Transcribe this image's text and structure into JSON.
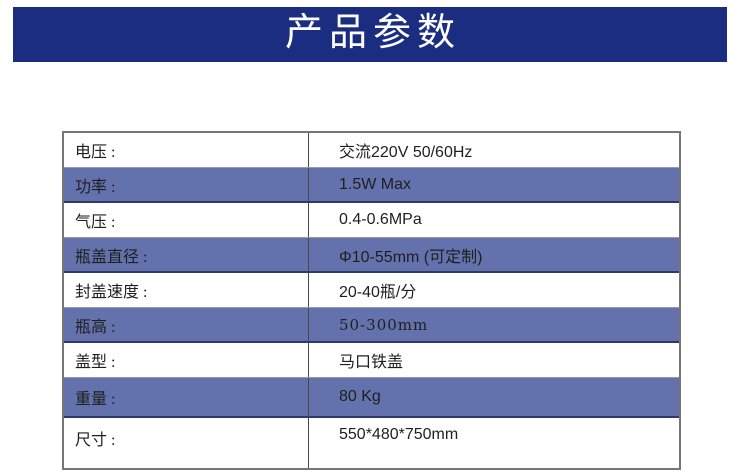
{
  "banner": {
    "title": "产品参数",
    "bg_color": "#1b2d80",
    "text_color": "#ffffff"
  },
  "table": {
    "highlight_color": "#6372ac",
    "border_color": "#767676",
    "rows": [
      {
        "label": "电压 :",
        "value": "交流220V 50/60Hz",
        "highlight": false
      },
      {
        "label": "功率 :",
        "value": "1.5W Max",
        "highlight": true
      },
      {
        "label": "气压 :",
        "value": "0.4-0.6MPa",
        "highlight": false
      },
      {
        "label": "瓶盖直径 :",
        "value": "Φ10-55mm (可定制)",
        "highlight": true
      },
      {
        "label": "封盖速度 :",
        "value": "20-40瓶/分",
        "highlight": false
      },
      {
        "label": "瓶高 :",
        "value": "50-300mm",
        "highlight": true
      },
      {
        "label": "盖型 :",
        "value": "马口铁盖",
        "highlight": false
      },
      {
        "label": "重量 :",
        "value": "80 Kg",
        "highlight": true
      },
      {
        "label": "尺寸 :",
        "value": "550*480*750mm",
        "highlight": false
      }
    ]
  }
}
